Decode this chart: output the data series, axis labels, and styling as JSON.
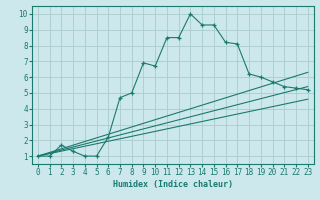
{
  "title": "",
  "xlabel": "Humidex (Indice chaleur)",
  "bg_color": "#cce8ec",
  "grid_color": "#aacccc",
  "line_color": "#1a7a6e",
  "xlim": [
    -0.5,
    23.5
  ],
  "ylim": [
    0.5,
    10.5
  ],
  "xticks": [
    0,
    1,
    2,
    3,
    4,
    5,
    6,
    7,
    8,
    9,
    10,
    11,
    12,
    13,
    14,
    15,
    16,
    17,
    18,
    19,
    20,
    21,
    22,
    23
  ],
  "yticks": [
    1,
    2,
    3,
    4,
    5,
    6,
    7,
    8,
    9,
    10
  ],
  "main_x": [
    0,
    1,
    2,
    3,
    4,
    5,
    6,
    7,
    8,
    9,
    10,
    11,
    12,
    13,
    14,
    15,
    16,
    17,
    18,
    19,
    20,
    21,
    22,
    23
  ],
  "main_y": [
    1.0,
    1.0,
    1.7,
    1.3,
    1.0,
    1.0,
    2.2,
    4.7,
    5.0,
    6.9,
    6.7,
    8.5,
    8.5,
    10.0,
    9.3,
    9.3,
    8.2,
    8.1,
    6.2,
    6.0,
    5.7,
    5.4,
    5.3,
    5.2
  ],
  "line1_x": [
    0,
    23
  ],
  "line1_y": [
    1.0,
    6.3
  ],
  "line2_x": [
    0,
    23
  ],
  "line2_y": [
    1.0,
    5.4
  ],
  "line3_x": [
    0,
    23
  ],
  "line3_y": [
    1.0,
    4.6
  ]
}
